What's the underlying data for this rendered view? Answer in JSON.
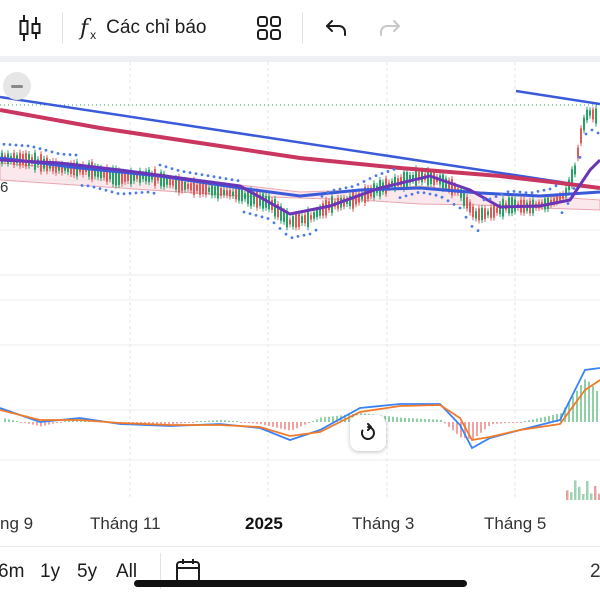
{
  "toolbar": {
    "candle_type_icon": "candlestick-icon",
    "indicators_icon": "fx-icon",
    "indicators_label": "Các chỉ báo",
    "layouts_icon": "grid-icon",
    "undo_icon": "undo-icon",
    "redo_icon": "redo-icon"
  },
  "chart": {
    "price_label_fragment": "6",
    "x_axis_labels": [
      "ng 9",
      "Tháng 11",
      "2025",
      "Tháng 3",
      "Tháng 5"
    ],
    "right_edge_fragment": "2",
    "colors": {
      "up_candle": "#26a269",
      "down_candle": "#e05a5a",
      "trendline": "#3a5bd9",
      "ma_long": "#c9365f",
      "ma_purple": "#6b35b8",
      "psar": "#4a7be8",
      "macd": "#3b82f6",
      "signal": "#f07a2a"
    }
  },
  "range_selector": {
    "options": [
      "6m",
      "1y",
      "5y",
      "All"
    ],
    "calendar_icon": "calendar-icon"
  }
}
